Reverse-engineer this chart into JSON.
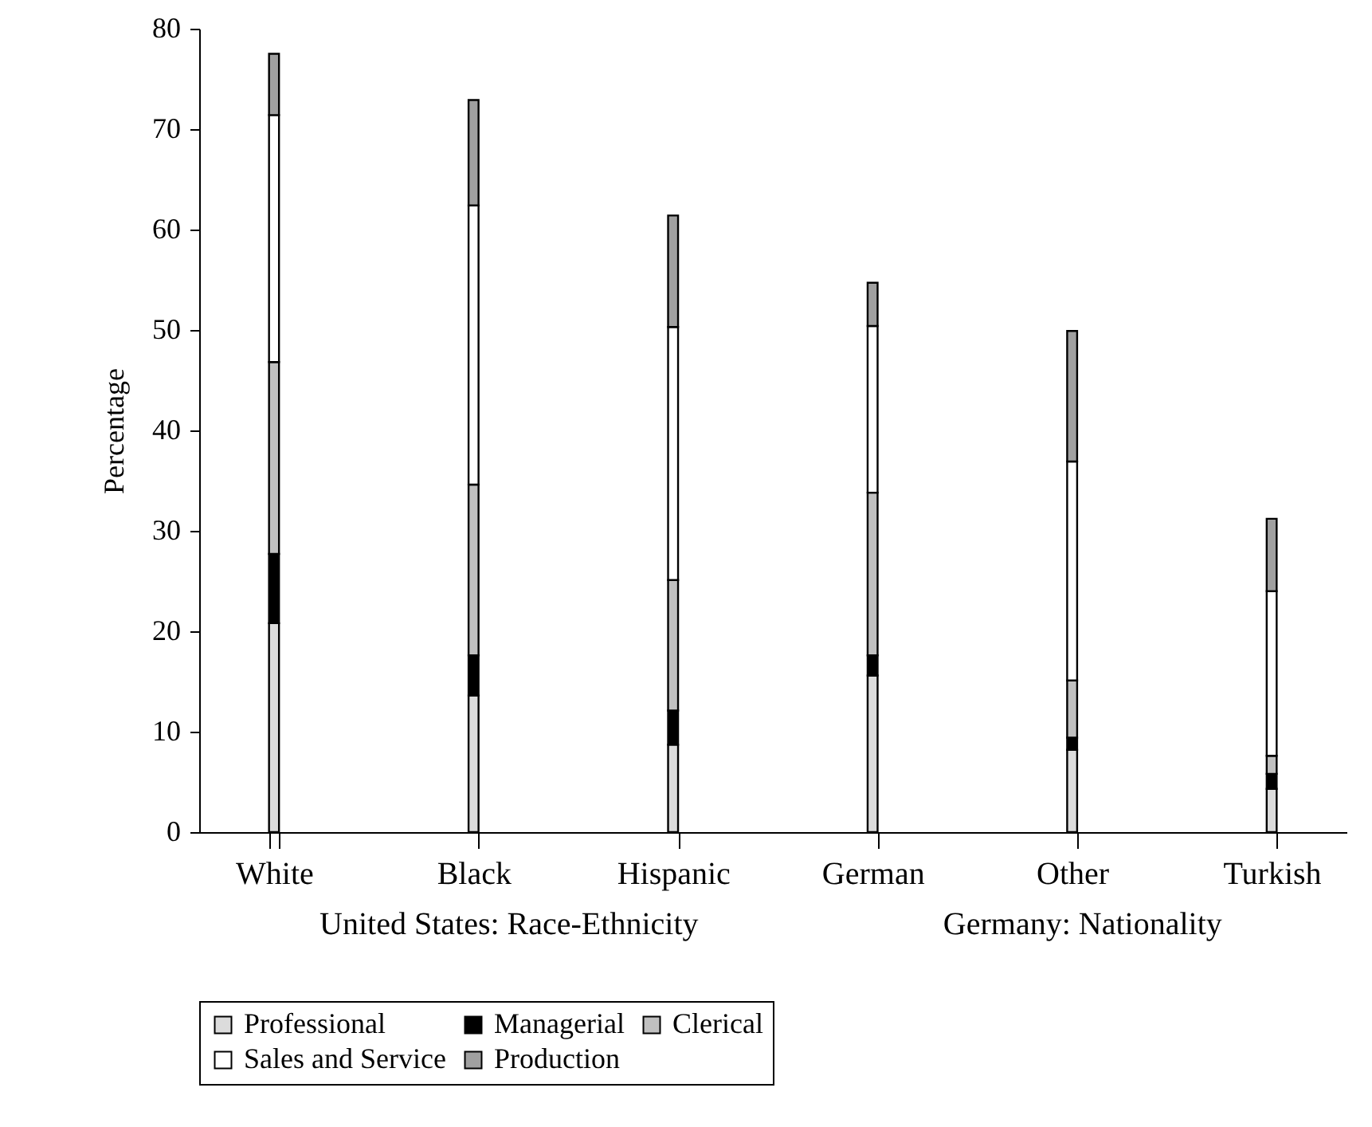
{
  "chart_data": {
    "type": "bar",
    "stacked": true,
    "ylabel": "Percentage",
    "categories": [
      "White",
      "Black",
      "Hispanic",
      "German",
      "Other",
      "Turkish"
    ],
    "series": [
      {
        "name": "Professional",
        "color": "#dcdcdc",
        "values": [
          20.8,
          13.6,
          8.7,
          15.6,
          8.2,
          4.3
        ]
      },
      {
        "name": "Managerial",
        "color": "#000000",
        "values": [
          6.9,
          4.0,
          3.4,
          2.0,
          1.2,
          1.5
        ]
      },
      {
        "name": "Clerical",
        "color": "#c0c0c0",
        "values": [
          19.1,
          17.0,
          13.0,
          16.2,
          5.7,
          1.8
        ]
      },
      {
        "name": "Sales and Service",
        "color": "#ffffff",
        "values": [
          24.6,
          27.8,
          25.2,
          16.6,
          21.8,
          16.4
        ]
      },
      {
        "name": "Production",
        "color": "#a0a0a0",
        "values": [
          6.1,
          10.5,
          11.1,
          4.3,
          13.0,
          7.2
        ]
      }
    ],
    "ylim": [
      0,
      80
    ],
    "yticks": [
      0,
      10,
      20,
      30,
      40,
      50,
      60,
      70,
      80
    ],
    "grid": false,
    "legend": "bottom",
    "annotations": [
      "United States: Race-Ethnicity",
      "Germany: Nationality"
    ]
  }
}
